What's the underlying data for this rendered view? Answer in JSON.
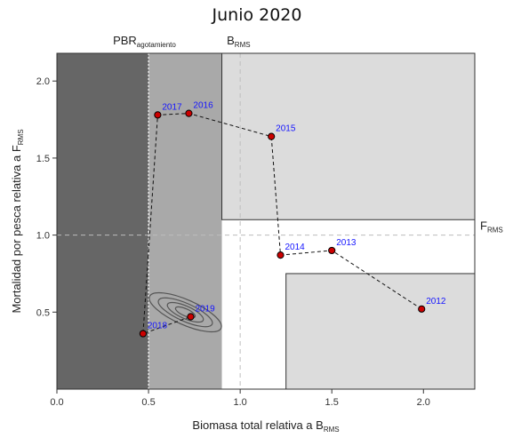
{
  "chart_data": {
    "type": "scatter",
    "title": "Junio 2020",
    "xlabel": "Biomasa total relativa a B",
    "xlabel_sub": "RMS",
    "ylabel": "Mortalidad por pesca relativa a F",
    "ylabel_sub": "RMS",
    "xlim": [
      0,
      2.28
    ],
    "ylim": [
      0,
      2.18
    ],
    "x_ticks": [
      0.0,
      0.5,
      1.0,
      1.5,
      2.0
    ],
    "x_tick_labels": [
      "0.0",
      "0.5",
      "1.0",
      "1.5",
      "2.0"
    ],
    "y_ticks": [
      0.5,
      1.0,
      1.5,
      2.0
    ],
    "y_tick_labels": [
      "0.5",
      "1.0",
      "1.5",
      "2.0"
    ],
    "reference_lines": {
      "pbr": {
        "value": 0.5,
        "label": "PBR",
        "label_sub": "agotamiento"
      },
      "brms": {
        "value": 1.0,
        "label": "B",
        "label_sub": "RMS"
      },
      "frms": {
        "value": 1.0,
        "label": "F",
        "label_sub": "RMS"
      }
    },
    "zones": {
      "dark_until_x": 0.5,
      "medium_until_x": 0.9,
      "light_upper_from": {
        "x": 0.9,
        "y": 1.1
      },
      "light_lower_from": {
        "x": 1.25,
        "y": 0.75
      }
    },
    "points": [
      {
        "year": "2012",
        "x": 1.99,
        "y": 0.52
      },
      {
        "year": "2013",
        "x": 1.5,
        "y": 0.9
      },
      {
        "year": "2014",
        "x": 1.22,
        "y": 0.87
      },
      {
        "year": "2015",
        "x": 1.17,
        "y": 1.64
      },
      {
        "year": "2016",
        "x": 0.72,
        "y": 1.79
      },
      {
        "year": "2017",
        "x": 0.55,
        "y": 1.78
      },
      {
        "year": "2018",
        "x": 0.47,
        "y": 0.36
      },
      {
        "year": "2019",
        "x": 0.73,
        "y": 0.47
      }
    ],
    "colors": {
      "dark_zone": "#666666",
      "medium_zone": "#a9a9a9",
      "light_zone": "#dcdcdc",
      "point_fill": "#cc0000",
      "year_label": "#1515ff",
      "trajectory": "#111111"
    },
    "grid": false
  }
}
